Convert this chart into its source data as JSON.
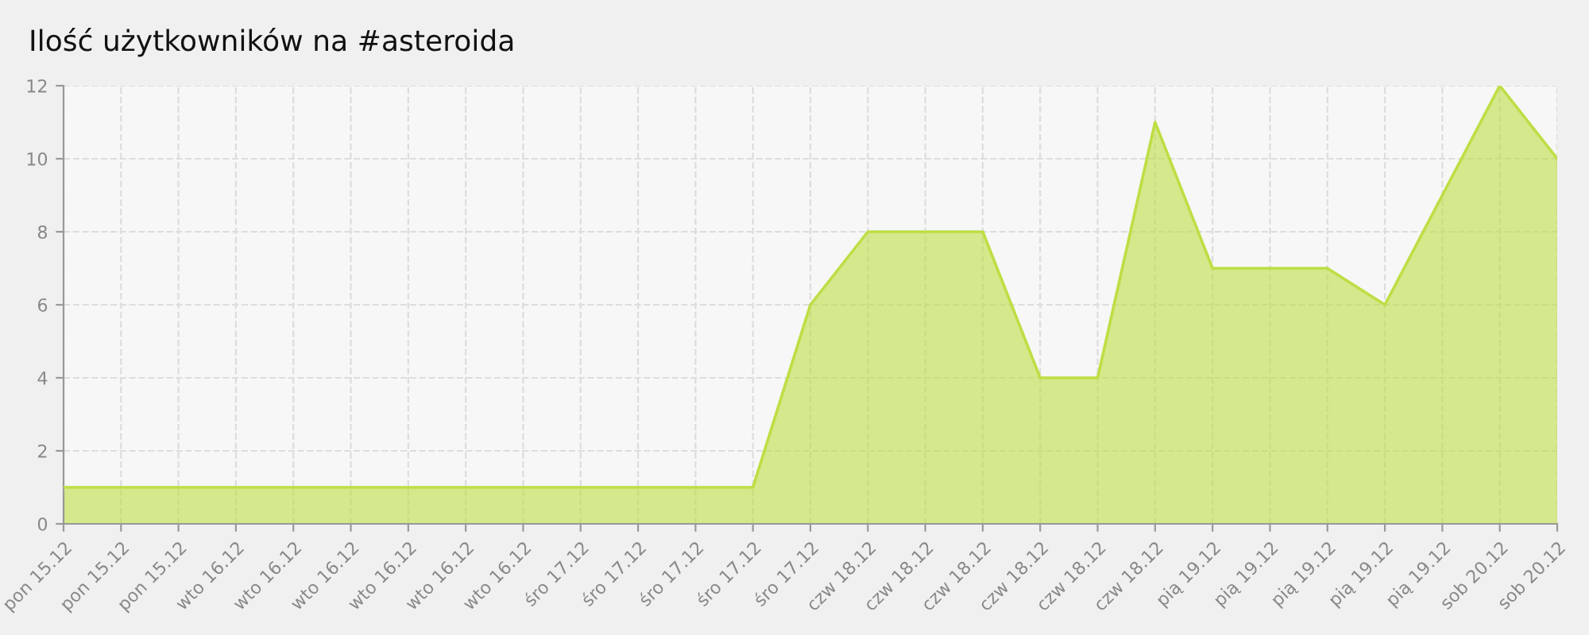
{
  "chart_data": {
    "type": "area",
    "title": "Ilość użytkowników na #asteroida",
    "categories": [
      "pon 15.12",
      "pon 15.12",
      "pon 15.12",
      "wto 16.12",
      "wto 16.12",
      "wto 16.12",
      "wto 16.12",
      "wto 16.12",
      "wto 16.12",
      "śro 17.12",
      "śro 17.12",
      "śro 17.12",
      "śro 17.12",
      "śro 17.12",
      "czw 18.12",
      "czw 18.12",
      "czw 18.12",
      "czw 18.12",
      "czw 18.12",
      "czw 18.12",
      "pią 19.12",
      "pią 19.12",
      "pią 19.12",
      "pią 19.12",
      "pią 19.12",
      "sob 20.12",
      "sob 20.12"
    ],
    "series": [
      {
        "color": "#bede45",
        "values": [
          1,
          1,
          1,
          1,
          1,
          1,
          1,
          1,
          1,
          1,
          1,
          1,
          1,
          6,
          8,
          8,
          8,
          4,
          4,
          11,
          7,
          7,
          7,
          6,
          9,
          12,
          10
        ]
      }
    ],
    "ylim": [
      0,
      12
    ],
    "yticks": [
      0,
      2,
      4,
      6,
      8,
      10,
      12
    ],
    "grid": true,
    "line_style": "solid",
    "marker": "none"
  }
}
